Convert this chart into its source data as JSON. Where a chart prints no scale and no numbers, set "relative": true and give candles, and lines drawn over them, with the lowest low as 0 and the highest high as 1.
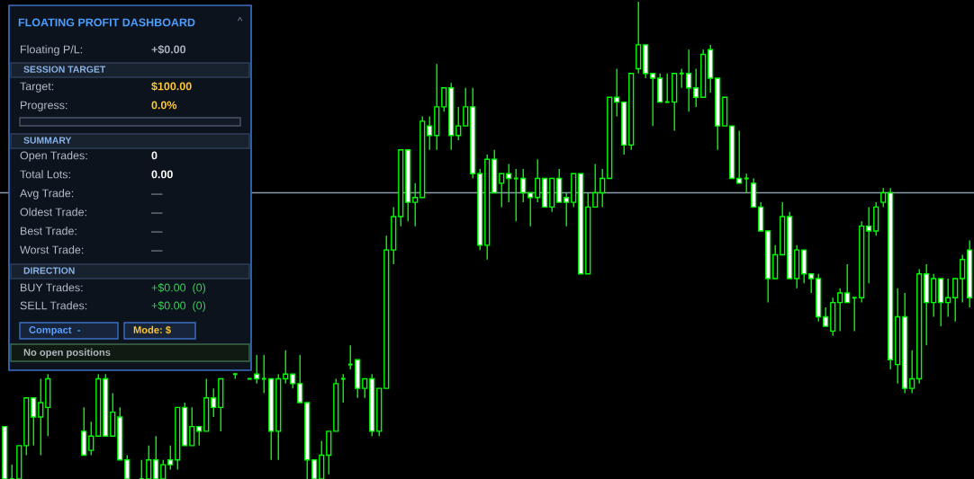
{
  "chart_data": [
    {
      "type": "candlestick",
      "relative": true,
      "color": "#00ff00",
      "categories": [
        null,
        null,
        null,
        null,
        null,
        null,
        null,
        null,
        null,
        null,
        null,
        null,
        null,
        null,
        null,
        null,
        null,
        null,
        null,
        null,
        null,
        null,
        null,
        null,
        null,
        null,
        null,
        null,
        null,
        null,
        null,
        null,
        null,
        null,
        null,
        null,
        null,
        null,
        null,
        null,
        null,
        null,
        null,
        null,
        null,
        null,
        null,
        null,
        null,
        null,
        null,
        null,
        null,
        null,
        null,
        null,
        null,
        null,
        null,
        null,
        null,
        null,
        null,
        null,
        null,
        null,
        null,
        null,
        null,
        null,
        null,
        null,
        null,
        null,
        null,
        null,
        null,
        null,
        null,
        null,
        null,
        null,
        null,
        null,
        null,
        null,
        null,
        null,
        null,
        null,
        null,
        null,
        null,
        null,
        null,
        null,
        null,
        null,
        null,
        null,
        null,
        null,
        null,
        null,
        null,
        null,
        null,
        null,
        null,
        null,
        null,
        null,
        null,
        null,
        null,
        null,
        null,
        null,
        null,
        null,
        null,
        null,
        null,
        null,
        null,
        null,
        null,
        null,
        null,
        null,
        null,
        null,
        null,
        null,
        null
      ],
      "ohlc": [
        [
          0.11,
          0.11,
          0,
          0
        ],
        [
          0,
          0.03,
          0,
          0
        ],
        [
          0,
          0.07,
          0,
          0.07
        ],
        [
          0.07,
          0.17,
          0.05,
          0.17
        ],
        [
          0.17,
          0.17,
          0.07,
          0.13
        ],
        [
          0.13,
          0.21,
          0.05,
          0.16
        ],
        [
          0.15,
          0.22,
          0.09,
          0.21
        ],
        null,
        null,
        null,
        null,
        [
          0.1,
          0.15,
          0.05,
          0.05
        ],
        [
          0.06,
          0.12,
          0.05,
          0.09
        ],
        [
          0.09,
          0.22,
          0.09,
          0.21
        ],
        [
          0.21,
          0.22,
          0.09,
          0.09
        ],
        [
          0.09,
          0.18,
          0.09,
          0.14
        ],
        [
          0.13,
          0.15,
          0.04,
          0.04
        ],
        [
          0.04,
          0.05,
          0,
          0
        ],
        null,
        [
          0,
          0.04,
          0,
          0
        ],
        [
          0,
          0.07,
          0,
          0.04
        ],
        [
          0.04,
          0.09,
          0,
          0
        ],
        [
          0,
          0.04,
          0,
          0.03
        ],
        [
          0.04,
          0.07,
          0.02,
          0.03
        ],
        [
          0.04,
          0.15,
          0.02,
          0.15
        ],
        [
          0.15,
          0.16,
          0.07,
          0.07
        ],
        [
          0.07,
          0.15,
          0.07,
          0.11
        ],
        [
          0.11,
          0.11,
          0.07,
          0.1
        ],
        [
          0.1,
          0.21,
          0.1,
          0.17
        ],
        [
          0.17,
          0.19,
          0.13,
          0.15
        ],
        [
          0.15,
          0.21,
          0.1,
          0.21
        ],
        null,
        [
          0.22,
          0.22,
          0.21,
          0.22
        ],
        null,
        [
          0.21,
          0.21,
          0.21,
          0.21
        ],
        [
          0.22,
          0.26,
          0.2,
          0.21
        ],
        [
          0.21,
          0.26,
          0.18,
          0.21
        ],
        [
          0.21,
          0.21,
          0.04,
          0.1
        ],
        [
          0.1,
          0.22,
          0.04,
          0.21
        ],
        [
          0.21,
          0.27,
          0.2,
          0.22
        ],
        [
          0.22,
          0.22,
          0.19,
          0.2
        ],
        [
          0.2,
          0.26,
          0.16,
          0.16
        ],
        [
          0.16,
          0.16,
          0,
          0.04
        ],
        [
          0.04,
          0.04,
          0,
          0
        ],
        [
          0,
          0.08,
          0,
          0.05
        ],
        [
          0.05,
          0.1,
          0.01,
          0.1
        ],
        [
          0.1,
          0.21,
          0.1,
          0.2
        ],
        [
          0.21,
          0.22,
          0.16,
          0.21
        ],
        [
          0.24,
          0.28,
          0.23,
          0.24
        ],
        [
          0.25,
          0.25,
          0.17,
          0.19
        ],
        [
          0.19,
          0.21,
          0.17,
          0.21
        ],
        [
          0.21,
          0.22,
          0.09,
          0.1
        ],
        [
          0.1,
          0.19,
          0.09,
          0.19
        ],
        [
          0.19,
          0.51,
          0.19,
          0.48
        ],
        [
          0.48,
          0.57,
          0.45,
          0.55
        ],
        [
          0.55,
          0.69,
          0.53,
          0.69
        ],
        [
          0.69,
          0.69,
          0.54,
          0.58
        ],
        [
          0.58,
          0.62,
          0.53,
          0.59
        ],
        [
          0.59,
          0.76,
          0.59,
          0.75
        ],
        [
          0.74,
          0.76,
          0.69,
          0.72
        ],
        [
          0.72,
          0.87,
          0.69,
          0.78
        ],
        [
          0.78,
          0.82,
          0.77,
          0.82
        ],
        [
          0.82,
          0.83,
          0.69,
          0.72
        ],
        [
          0.72,
          0.78,
          0.71,
          0.74
        ],
        [
          0.74,
          0.82,
          0.74,
          0.78
        ],
        [
          0.78,
          0.82,
          0.63,
          0.64
        ],
        [
          0.64,
          0.65,
          0.48,
          0.49
        ],
        [
          0.49,
          0.68,
          0.46,
          0.67
        ],
        [
          0.67,
          0.69,
          0.6,
          0.6
        ],
        [
          0.62,
          0.64,
          0.57,
          0.64
        ],
        [
          0.64,
          0.66,
          0.58,
          0.63
        ],
        [
          0.63,
          0.65,
          0.54,
          0.63
        ],
        [
          0.63,
          0.65,
          0.58,
          0.6
        ],
        [
          0.6,
          0.6,
          0.53,
          0.59
        ],
        [
          0.59,
          0.67,
          0.58,
          0.63
        ],
        [
          0.63,
          0.63,
          0.57,
          0.57
        ],
        [
          0.57,
          0.63,
          0.56,
          0.63
        ],
        [
          0.63,
          0.65,
          0.58,
          0.58
        ],
        [
          0.59,
          0.6,
          0.53,
          0.58
        ],
        [
          0.58,
          0.64,
          0.57,
          0.64
        ],
        [
          0.64,
          0.64,
          0.43,
          0.43
        ],
        [
          0.43,
          0.6,
          0.43,
          0.57
        ],
        [
          0.57,
          0.66,
          0.57,
          0.6
        ],
        [
          0.6,
          0.65,
          0.57,
          0.63
        ],
        [
          0.63,
          0.8,
          0.63,
          0.8
        ],
        [
          0.8,
          0.86,
          0.76,
          0.79
        ],
        [
          0.79,
          0.79,
          0.68,
          0.7
        ],
        [
          0.7,
          0.85,
          0.69,
          0.85
        ],
        [
          0.86,
          1.0,
          0.85,
          0.91
        ],
        [
          0.91,
          0.91,
          0.84,
          0.85
        ],
        [
          0.85,
          0.85,
          0.74,
          0.84
        ],
        [
          0.84,
          0.85,
          0.79,
          0.79
        ],
        [
          0.79,
          0.85,
          0.79,
          0.79
        ],
        [
          0.79,
          0.85,
          0.73,
          0.85
        ],
        [
          0.85,
          0.86,
          0.82,
          0.85
        ],
        [
          0.85,
          0.9,
          0.77,
          0.82
        ],
        [
          0.82,
          0.86,
          0.78,
          0.8
        ],
        [
          0.8,
          0.9,
          0.8,
          0.89
        ],
        [
          0.9,
          0.91,
          0.81,
          0.84
        ],
        [
          0.84,
          0.84,
          0.69,
          0.74
        ],
        [
          0.74,
          0.8,
          0.74,
          0.8
        ],
        [
          0.74,
          0.74,
          0.63,
          0.63
        ],
        [
          0.63,
          0.73,
          0.62,
          0.62
        ],
        [
          0.63,
          0.64,
          0.6,
          0.63
        ],
        [
          0.62,
          0.63,
          0.57,
          0.57
        ],
        [
          0.57,
          0.58,
          0.52,
          0.52
        ],
        [
          0.52,
          0.52,
          0.37,
          0.42
        ],
        [
          0.42,
          0.49,
          0.42,
          0.47
        ],
        [
          0.47,
          0.58,
          0.47,
          0.55
        ],
        [
          0.55,
          0.56,
          0.42,
          0.42
        ],
        [
          0.42,
          0.49,
          0.4,
          0.48
        ],
        [
          0.48,
          0.48,
          0.41,
          0.43
        ],
        [
          0.43,
          0.43,
          0.39,
          0.42
        ],
        [
          0.42,
          0.43,
          0.33,
          0.34
        ],
        [
          0.34,
          0.36,
          0.32,
          0.32
        ],
        [
          0.31,
          0.38,
          0.3,
          0.37
        ],
        [
          0.37,
          0.4,
          0.31,
          0.39
        ],
        [
          0.39,
          0.45,
          0.37,
          0.37
        ],
        [
          0.38,
          0.38,
          0.31,
          0.38
        ],
        [
          0.38,
          0.54,
          0.37,
          0.53
        ],
        [
          0.53,
          0.57,
          0.41,
          0.52
        ],
        [
          0.52,
          0.58,
          0.51,
          0.57
        ],
        [
          0.58,
          0.61,
          0.57,
          0.6
        ],
        [
          0.6,
          0.61,
          0.23,
          0.25
        ],
        [
          0.24,
          0.4,
          0.2,
          0.34
        ],
        [
          0.34,
          0.39,
          0.18,
          0.19
        ],
        [
          0.19,
          0.27,
          0.18,
          0.21
        ],
        [
          0.21,
          0.44,
          0.2,
          0.43
        ],
        [
          0.43,
          0.45,
          0.28,
          0.37
        ],
        [
          0.37,
          0.43,
          0.34,
          0.42
        ],
        [
          0.42,
          0.42,
          0.32,
          0.37
        ],
        [
          0.37,
          0.42,
          0.34,
          0.38
        ],
        [
          0.38,
          0.42,
          0.33,
          0.42
        ],
        [
          0.42,
          0.47,
          0.37,
          0.46
        ],
        [
          0.48,
          0.5,
          0.36,
          0.38
        ]
      ],
      "ref_lines": [
        {
          "axis": "y",
          "value": 0.6,
          "color": "#8a9bb0"
        }
      ]
    },
    {
      "type": "other",
      "title": "FLOATING PROFIT DASHBOARD",
      "annotations": [
        "^",
        "Floating P/L:",
        "+$0.00",
        "SESSION TARGET",
        "Target:",
        "$100.00",
        "Progress:",
        "0.0%",
        "SUMMARY",
        "Open Trades:",
        "0",
        "Total Lots:",
        "0.00",
        "Avg Trade:",
        "—",
        "Oldest Trade:",
        "—",
        "Best Trade:",
        "—",
        "Worst Trade:",
        "—",
        "DIRECTION",
        "BUY Trades:",
        "+$0.00  (0)",
        "SELL Trades:",
        "+$0.00  (0)",
        "Compact  -",
        "Mode: $",
        "No open positions"
      ]
    }
  ]
}
